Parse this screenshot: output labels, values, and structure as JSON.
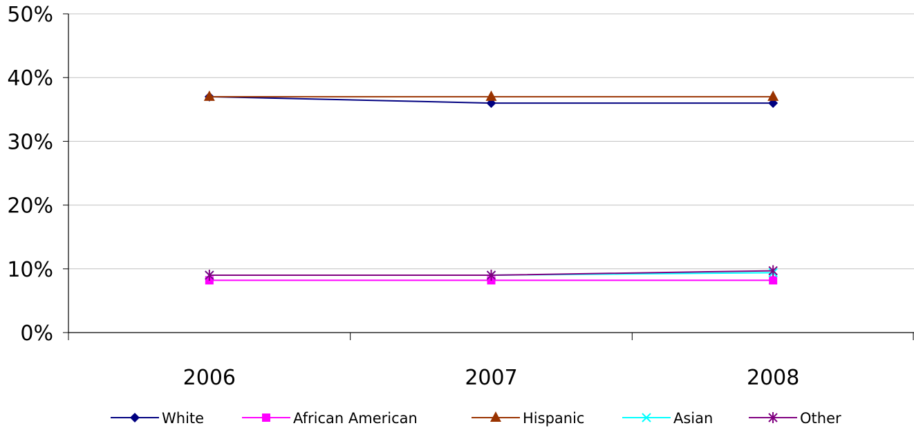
{
  "chart_data": {
    "type": "line",
    "categories": [
      "2006",
      "2007",
      "2008"
    ],
    "ylim": [
      0,
      50
    ],
    "yticks": [
      0,
      10,
      20,
      30,
      40,
      50
    ],
    "y_tick_format": "percent",
    "grid": true,
    "legend_position": "bottom",
    "series": [
      {
        "name": "White",
        "values": [
          37,
          36,
          36
        ],
        "color": "#000080",
        "marker": "diamond"
      },
      {
        "name": "African American",
        "values": [
          8.2,
          8.2,
          8.2
        ],
        "color": "#ff00ff",
        "marker": "square"
      },
      {
        "name": "Hispanic",
        "values": [
          37,
          37,
          37
        ],
        "color": "#993300",
        "marker": "triangle"
      },
      {
        "name": "Asian",
        "values": [
          9,
          9,
          9.4
        ],
        "color": "#00ffff",
        "marker": "x"
      },
      {
        "name": "Other",
        "values": [
          9,
          9,
          9.7
        ],
        "color": "#800080",
        "marker": "asterisk"
      }
    ]
  }
}
